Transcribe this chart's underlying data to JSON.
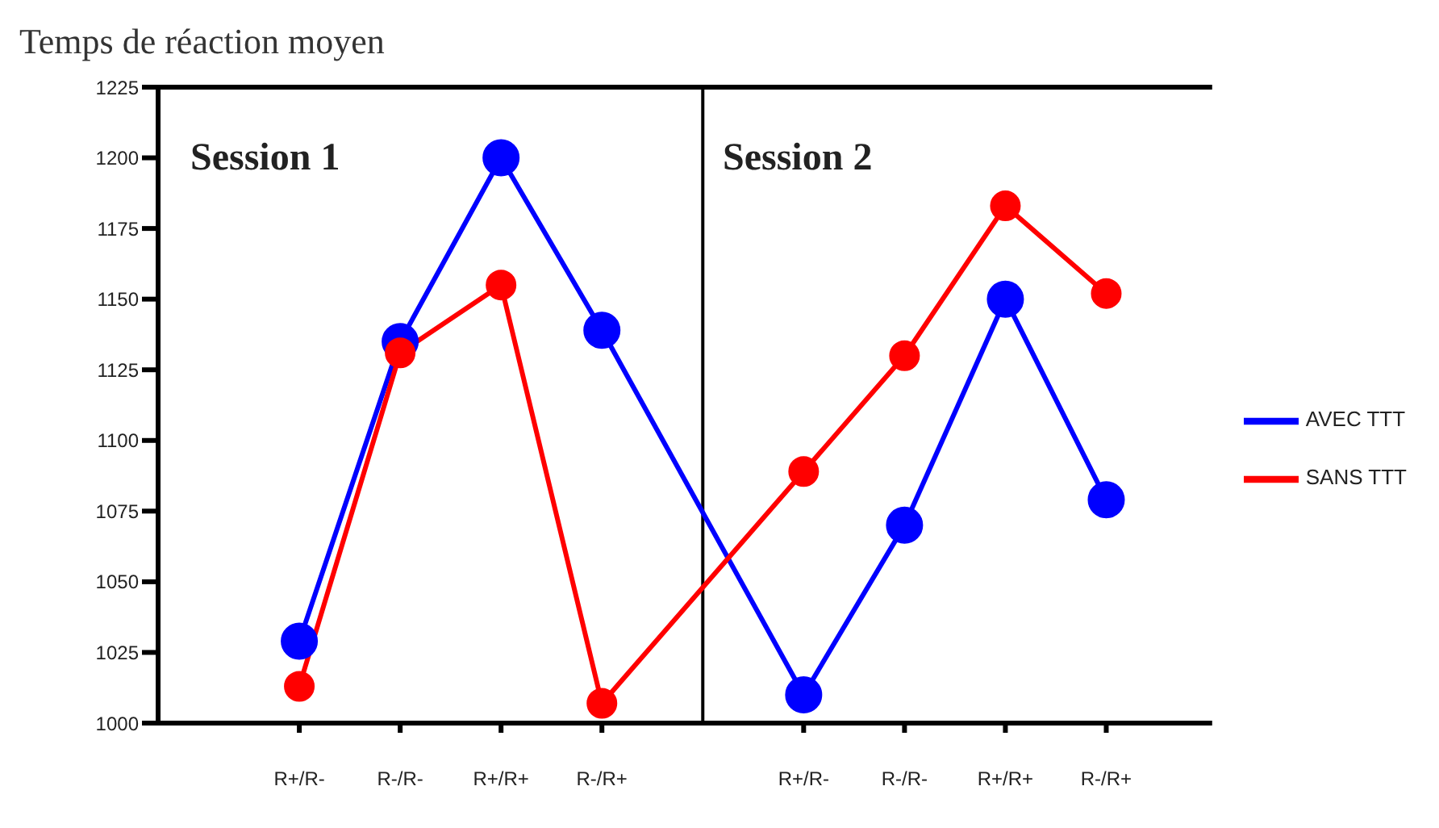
{
  "chart_data": {
    "type": "line",
    "title": "Temps de réaction moyen",
    "categories": [
      "R+/R-",
      "R-/R-",
      "R+/R+",
      "R-/R+",
      null,
      "R+/R-",
      "R-/R-",
      "R+/R+",
      "R-/R+"
    ],
    "ylim": [
      1000,
      1225
    ],
    "yticks": [
      1000,
      1025,
      1050,
      1075,
      1100,
      1125,
      1150,
      1175,
      1200,
      1225
    ],
    "series": [
      {
        "name": "AVEC TTT",
        "color": "#0000ff",
        "values": [
          1029,
          1135,
          1200,
          1139,
          null,
          1010,
          1070,
          1150,
          1079
        ]
      },
      {
        "name": "SANS TTT",
        "color": "#ff0000",
        "values": [
          1013,
          1131,
          1155,
          1007,
          null,
          1089,
          1130,
          1183,
          1152
        ]
      }
    ],
    "annotations": [
      "Session 1",
      "Session 2"
    ],
    "legend": "right",
    "marker": "circle",
    "line_style": "solid"
  }
}
